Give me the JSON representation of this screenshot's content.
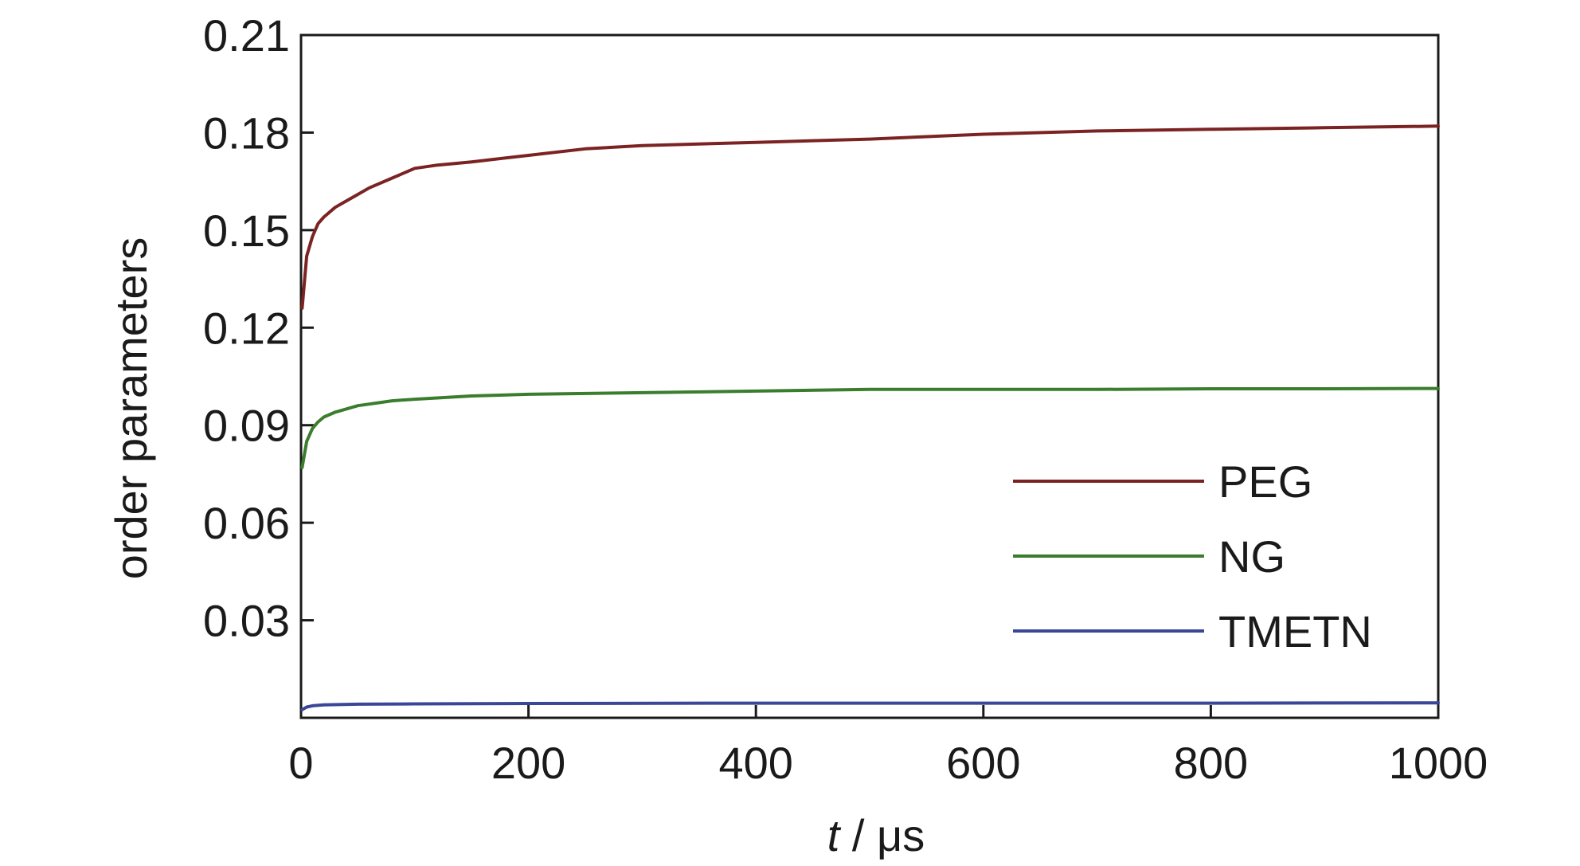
{
  "chart_data": {
    "type": "line",
    "xlabel_italic": "t",
    "xlabel_rest": " / μs",
    "ylabel": "order parameters",
    "xlim": [
      0,
      1000
    ],
    "ylim": [
      0,
      0.21
    ],
    "x_ticks": [
      0,
      200,
      400,
      600,
      800,
      1000
    ],
    "x_tick_labels": [
      "0",
      "200",
      "400",
      "600",
      "800",
      "1000"
    ],
    "y_ticks": [
      0.03,
      0.06,
      0.09,
      0.12,
      0.15,
      0.18,
      0.21
    ],
    "y_tick_labels": [
      "0.03",
      "0.06",
      "0.09",
      "0.12",
      "0.15",
      "0.18",
      "0.21"
    ],
    "grid": false,
    "legend_position": "lower-right",
    "series": [
      {
        "name": "PEG",
        "color": "#7b2322",
        "x": [
          1,
          5,
          10,
          15,
          20,
          30,
          40,
          50,
          60,
          80,
          100,
          120,
          150,
          200,
          250,
          300,
          400,
          500,
          600,
          700,
          800,
          900,
          1000
        ],
        "y": [
          0.126,
          0.142,
          0.148,
          0.152,
          0.154,
          0.157,
          0.159,
          0.161,
          0.163,
          0.166,
          0.169,
          0.17,
          0.171,
          0.173,
          0.175,
          0.176,
          0.177,
          0.178,
          0.1795,
          0.1805,
          0.181,
          0.1815,
          0.182
        ]
      },
      {
        "name": "NG",
        "color": "#3a7d2c",
        "x": [
          1,
          5,
          10,
          15,
          20,
          30,
          40,
          50,
          60,
          80,
          100,
          150,
          200,
          300,
          400,
          500,
          600,
          700,
          800,
          900,
          1000
        ],
        "y": [
          0.077,
          0.085,
          0.089,
          0.091,
          0.0925,
          0.094,
          0.095,
          0.096,
          0.0965,
          0.0975,
          0.098,
          0.099,
          0.0995,
          0.1,
          0.1005,
          0.101,
          0.101,
          0.101,
          0.1012,
          0.1012,
          0.1013
        ]
      },
      {
        "name": "TMETN",
        "color": "#3a4697",
        "x": [
          1,
          5,
          10,
          20,
          50,
          100,
          200,
          400,
          600,
          800,
          1000
        ],
        "y": [
          0.0025,
          0.0033,
          0.0037,
          0.004,
          0.0042,
          0.0043,
          0.0044,
          0.0045,
          0.0045,
          0.0045,
          0.0046
        ]
      }
    ]
  }
}
